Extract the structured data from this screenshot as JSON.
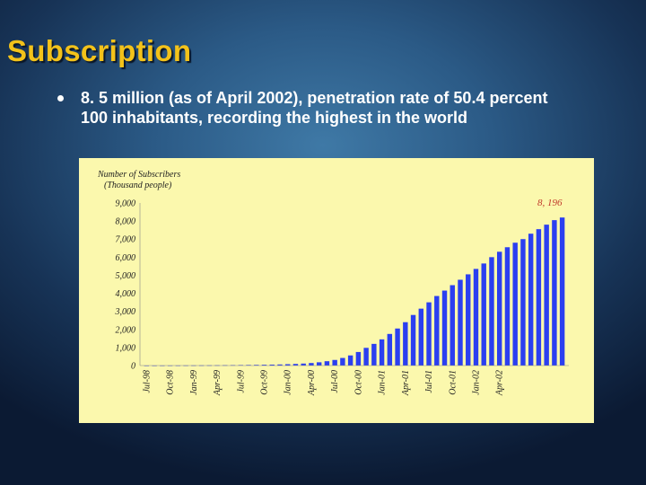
{
  "slide": {
    "title": "Subscription",
    "bullet_line1": "8. 5 million (as of April 2002), penetration rate of 50.4 percent",
    "bullet_line2": "100 inhabitants, recording the highest in the world"
  },
  "colors": {
    "title": "#f3c21a",
    "bar": "#2b3ff0",
    "panel": "#fbf8ad",
    "end_label": "#c0392b"
  },
  "chart_data": {
    "type": "bar",
    "title": "",
    "ylabel_line1": "Number of Subscribers",
    "ylabel_line2": "(Thousand people)",
    "xlabel": "",
    "ylim": [
      0,
      9000
    ],
    "yticks": [
      "9,000",
      "8,000",
      "7,000",
      "6,000",
      "5,000",
      "4,000",
      "3,000",
      "2,000",
      "1,000",
      "0"
    ],
    "tick_values": [
      9000,
      8000,
      7000,
      6000,
      5000,
      4000,
      3000,
      2000,
      1000,
      0
    ],
    "x_tick_labels": [
      "Jul-98",
      "Oct-98",
      "Jan-99",
      "Apr-99",
      "Jul-99",
      "Oct-99",
      "Jan-00",
      "Apr-00",
      "Jul-00",
      "Oct-00",
      "Jan-01",
      "Apr-01",
      "Jul-01",
      "Oct-01",
      "Jan-02",
      "Apr-02"
    ],
    "x_tick_index": [
      0,
      3,
      6,
      9,
      12,
      15,
      18,
      21,
      24,
      27,
      30,
      33,
      36,
      39,
      42,
      45
    ],
    "end_label": "8, 196",
    "values": [
      2,
      3,
      4,
      5,
      6,
      8,
      10,
      12,
      14,
      17,
      20,
      24,
      28,
      33,
      38,
      45,
      52,
      60,
      75,
      90,
      110,
      140,
      180,
      240,
      310,
      420,
      560,
      750,
      980,
      1200,
      1450,
      1750,
      2050,
      2400,
      2800,
      3150,
      3500,
      3850,
      4150,
      4450,
      4750,
      5050,
      5350,
      5650,
      6000,
      6300,
      6550,
      6800,
      7000,
      7300,
      7550,
      7800,
      8050,
      8196
    ]
  }
}
